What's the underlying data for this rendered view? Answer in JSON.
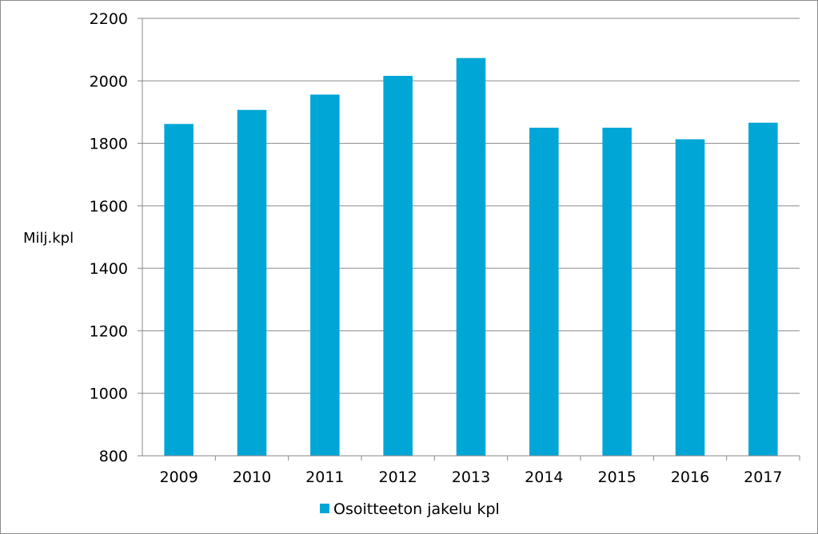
{
  "chart_data": {
    "type": "bar",
    "title": "",
    "xlabel": "",
    "ylabel": "Milj.kpl",
    "categories": [
      "2009",
      "2010",
      "2011",
      "2012",
      "2013",
      "2014",
      "2015",
      "2016",
      "2017"
    ],
    "series": [
      {
        "name": "Osoitteeton jakelu kpl",
        "values": [
          1862,
          1907,
          1956,
          2016,
          2073,
          1850,
          1850,
          1813,
          1866
        ],
        "color": "#00a6d6"
      }
    ],
    "ylim": [
      800,
      2200
    ],
    "yticks": [
      800,
      1000,
      1200,
      1400,
      1600,
      1800,
      2000,
      2200
    ],
    "grid": true,
    "gridline_color": "#888888",
    "legend_position": "bottom"
  }
}
